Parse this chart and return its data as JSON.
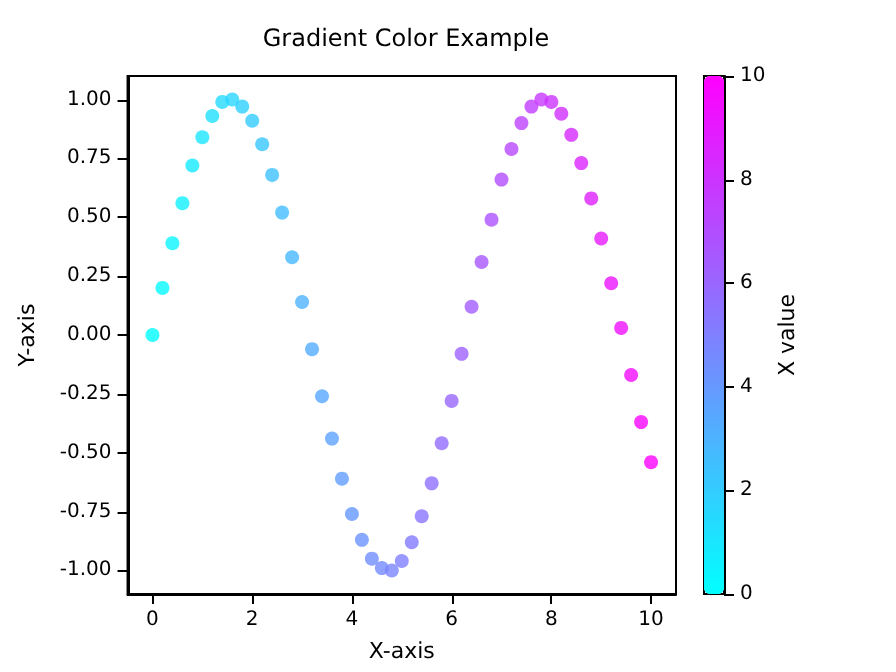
{
  "chart_data": {
    "type": "scatter",
    "title": "Gradient Color Example",
    "xlabel": "X-axis",
    "ylabel": "Y-axis",
    "clabel": "X value",
    "x": [
      0,
      0.2,
      0.4,
      0.6,
      0.8,
      1,
      1.2,
      1.4,
      1.6,
      1.8,
      2,
      2.2,
      2.4,
      2.6,
      2.8,
      3,
      3.2,
      3.4,
      3.6,
      3.8,
      4,
      4.2,
      4.4,
      4.6,
      4.8,
      5,
      5.2,
      5.4,
      5.6,
      5.8,
      6,
      6.2,
      6.4,
      6.6,
      6.8,
      7,
      7.2,
      7.4,
      7.6,
      7.8,
      8,
      8.2,
      8.4,
      8.6,
      8.8,
      9,
      9.2,
      9.4,
      9.6,
      9.8,
      10
    ],
    "values": [
      0,
      0.2,
      0.39,
      0.56,
      0.72,
      0.84,
      0.93,
      0.99,
      1,
      0.97,
      0.91,
      0.81,
      0.68,
      0.52,
      0.33,
      0.14,
      -0.06,
      -0.26,
      -0.44,
      -0.61,
      -0.76,
      -0.87,
      -0.95,
      -0.99,
      -1,
      -0.96,
      -0.88,
      -0.77,
      -0.63,
      -0.46,
      -0.28,
      -0.08,
      0.12,
      0.31,
      0.49,
      0.66,
      0.79,
      0.9,
      0.97,
      1,
      0.99,
      0.94,
      0.85,
      0.73,
      0.58,
      0.41,
      0.22,
      0.03,
      -0.17,
      -0.37,
      -0.54
    ],
    "cvalues": [
      0,
      0.2,
      0.4,
      0.6,
      0.8,
      1,
      1.2,
      1.4,
      1.6,
      1.8,
      2,
      2.2,
      2.4,
      2.6,
      2.8,
      3,
      3.2,
      3.4,
      3.6,
      3.8,
      4,
      4.2,
      4.4,
      4.6,
      4.8,
      5,
      5.2,
      5.4,
      5.6,
      5.8,
      6,
      6.2,
      6.4,
      6.6,
      6.8,
      7,
      7.2,
      7.4,
      7.6,
      7.8,
      8,
      8.2,
      8.4,
      8.6,
      8.8,
      9,
      9.2,
      9.4,
      9.6,
      9.8,
      10
    ],
    "clim": [
      0,
      10
    ],
    "cticks": [
      0,
      2,
      4,
      6,
      8,
      10
    ],
    "xlim": [
      -0.5,
      10.5
    ],
    "xticks": [
      0,
      2,
      4,
      6,
      8,
      10
    ],
    "ylim": [
      -1.1,
      1.1
    ],
    "yticks": [
      {
        "value": -1,
        "label": "-1.00"
      },
      {
        "value": -0.75,
        "label": "-0.75"
      },
      {
        "value": -0.5,
        "label": "-0.50"
      },
      {
        "value": -0.25,
        "label": "-0.25"
      },
      {
        "value": 0,
        "label": "0.00"
      },
      {
        "value": 0.25,
        "label": "0.25"
      },
      {
        "value": 0.5,
        "label": "0.50"
      },
      {
        "value": 0.75,
        "label": "0.75"
      },
      {
        "value": 1,
        "label": "1.00"
      }
    ],
    "marker": "circle",
    "grid": false
  }
}
